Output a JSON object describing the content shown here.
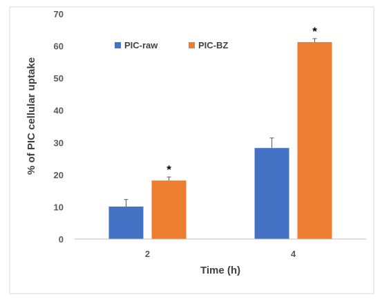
{
  "chart_data": {
    "type": "bar",
    "title": "",
    "xlabel": "Time (h)",
    "ylabel": "% of PIC cellular uptake",
    "categories": [
      "2",
      "4"
    ],
    "ylim": [
      0,
      70
    ],
    "yticks": [
      0,
      10,
      20,
      30,
      40,
      50,
      60,
      70
    ],
    "grid": false,
    "legend_position": "top-left",
    "series": [
      {
        "name": "PIC-raw",
        "color": "#4472C4",
        "values": [
          10.1,
          28.3
        ],
        "error": [
          2.2,
          3.1
        ],
        "annotations": [
          "",
          ""
        ]
      },
      {
        "name": "PIC-BZ",
        "color": "#ED7D31",
        "values": [
          18.2,
          61.2
        ],
        "error": [
          1.1,
          1.1
        ],
        "annotations": [
          "*",
          "*"
        ]
      }
    ]
  }
}
